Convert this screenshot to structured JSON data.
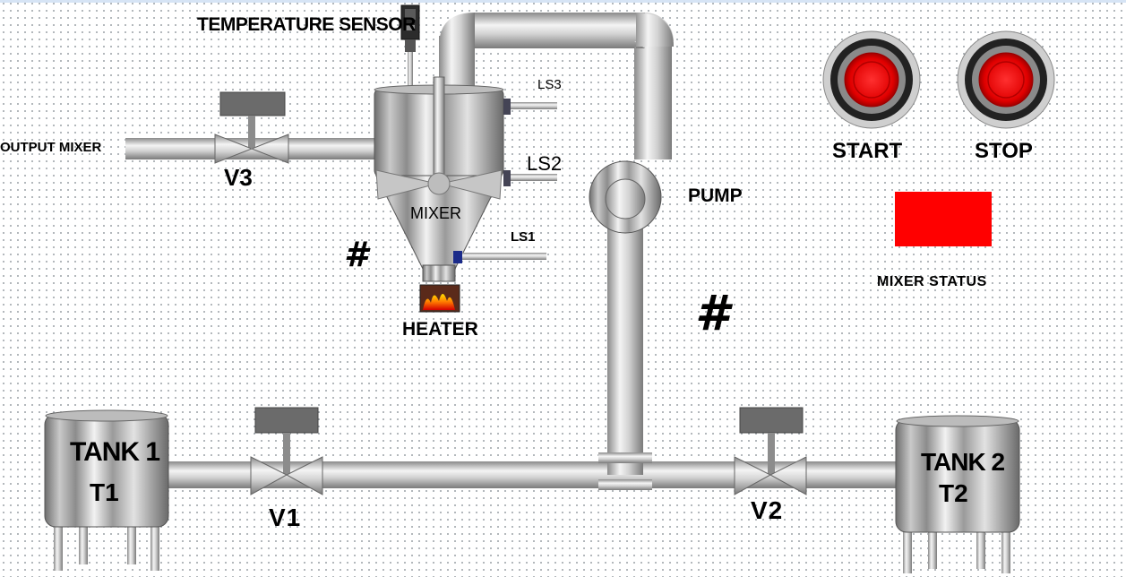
{
  "labels": {
    "temperature_sensor": "TEMPERATURE SENSOR",
    "output_mixer": "OUTPUT MIXER",
    "v3": "V3",
    "v1": "V1",
    "v2": "V2",
    "ls1": "LS1",
    "ls2": "LS2",
    "ls3": "LS3",
    "mixer": "MIXER",
    "heater": "HEATER",
    "pump": "PUMP",
    "tank1_name": "TANK 1",
    "tank1_id": "T1",
    "tank2_name": "TANK 2",
    "tank2_id": "T2",
    "mixer_status": "MIXER STATUS",
    "hash_mixer": "#",
    "hash_pump": "#"
  },
  "buttons": {
    "start_label": "START",
    "stop_label": "STOP"
  },
  "colors": {
    "button_red": "#ff1a1a",
    "status_red": "#ff0000",
    "valve_actuator": "#6b6b6b",
    "pipe_gray": "#c8c8c8"
  },
  "icons": {
    "start": "red-pushbutton-icon",
    "stop": "red-pushbutton-icon",
    "heater": "flame-icon",
    "sensor": "temperature-sensor-icon"
  }
}
